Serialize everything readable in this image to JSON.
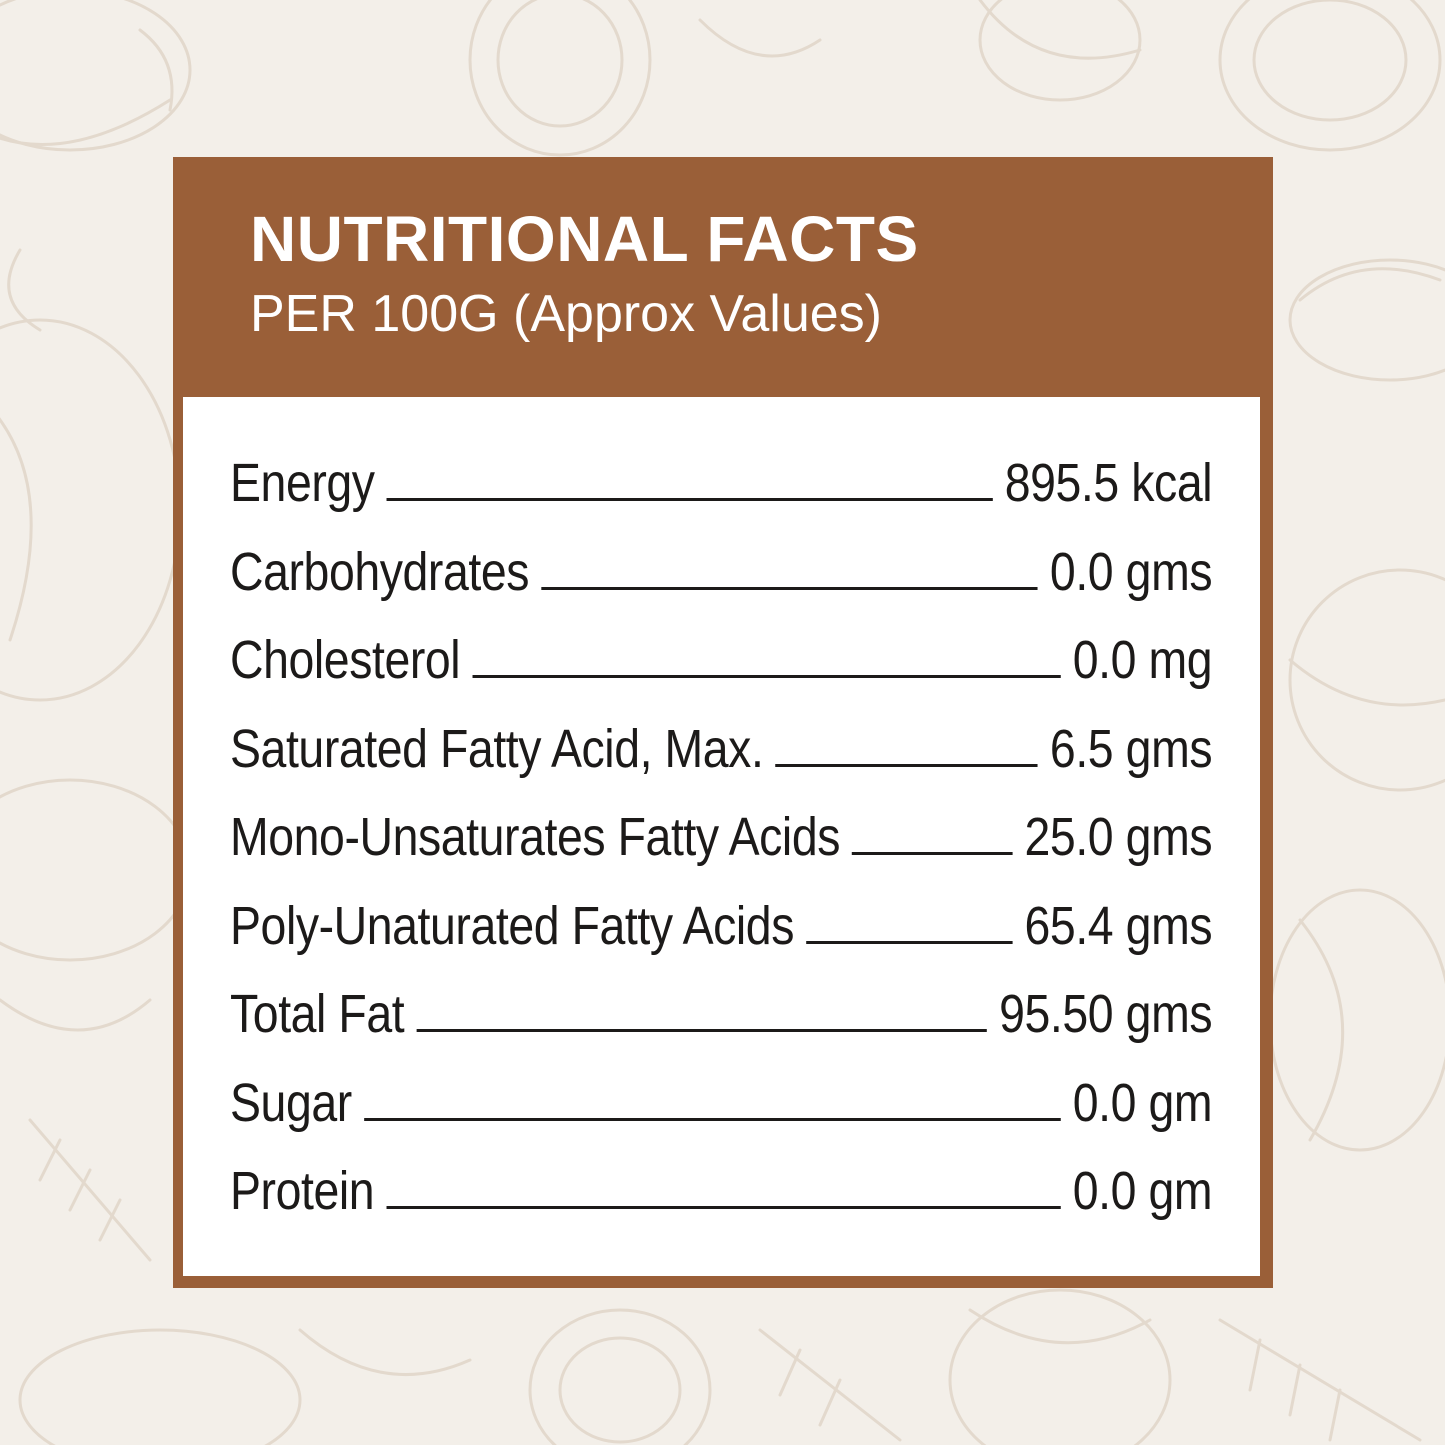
{
  "header": {
    "title": "NUTRITIONAL FACTS",
    "subtitle": "PER 100G (Approx Values)"
  },
  "nutrients": [
    {
      "name": "Energy",
      "value": "895.5 kcal"
    },
    {
      "name": "Carbohydrates",
      "value": "0.0 gms"
    },
    {
      "name": "Cholesterol",
      "value": "0.0 mg"
    },
    {
      "name": "Saturated Fatty Acid, Max.",
      "value": "6.5 gms"
    },
    {
      "name": "Mono-Unsaturates Fatty Acids",
      "value": "25.0 gms"
    },
    {
      "name": "Poly-Unaturated Fatty Acids",
      "value": "65.4 gms"
    },
    {
      "name": "Total Fat",
      "value": "95.50 gms"
    },
    {
      "name": "Sugar",
      "value": "0.0 gm"
    },
    {
      "name": "Protein",
      "value": "0.0 gm"
    }
  ],
  "colors": {
    "background": "#f3efe9",
    "pattern": "#e3d9cd",
    "panel": "#9a5f38",
    "content": "#ffffff",
    "text": "#1c1a19"
  },
  "decorations": {
    "background_icon": "coconut-pattern-icon"
  }
}
